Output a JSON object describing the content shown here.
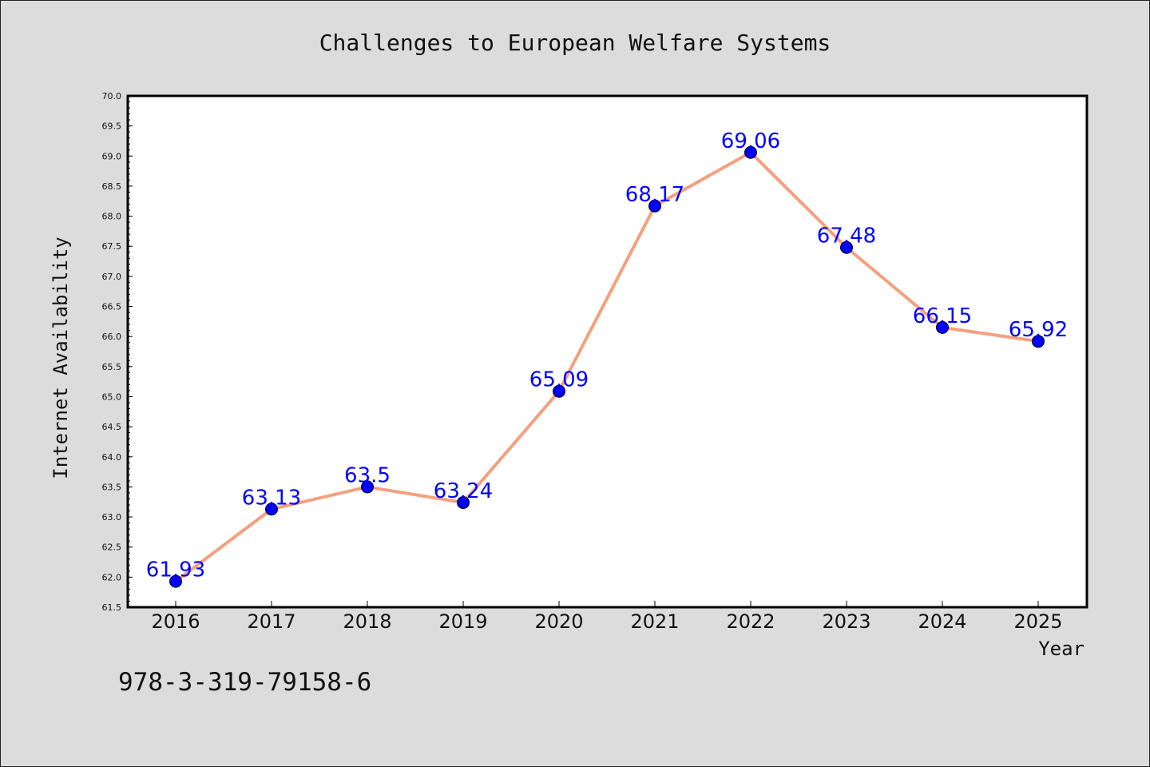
{
  "chart_data": {
    "type": "line",
    "title": "Challenges to European Welfare Systems",
    "xlabel": "Year",
    "ylabel": "Internet Availability",
    "categories": [
      "2016",
      "2017",
      "2018",
      "2019",
      "2020",
      "2021",
      "2022",
      "2023",
      "2024",
      "2025"
    ],
    "values": [
      61.93,
      63.13,
      63.5,
      63.24,
      65.09,
      68.17,
      69.06,
      67.48,
      66.15,
      65.92
    ],
    "data_labels": [
      "61.93",
      "63.13",
      "63.5",
      "63.24",
      "65.09",
      "68.17",
      "69.06",
      "67.48",
      "66.15",
      "65.92"
    ],
    "ylim": [
      61.5,
      70.0
    ],
    "yticks": [
      "61.5",
      "62.0",
      "62.5",
      "63.0",
      "63.5",
      "64.0",
      "64.5",
      "65.0",
      "65.5",
      "66.0",
      "66.5",
      "67.0",
      "67.5",
      "68.0",
      "68.5",
      "69.0",
      "69.5",
      "70.0"
    ],
    "grid": false,
    "line_color": "#f4a07e",
    "marker_color": "#0000ff",
    "label_color": "#0000ff",
    "background_color": "#dcdcdc",
    "plot_background_color": "#ffffff"
  },
  "footer_text": "978-3-319-79158-6"
}
